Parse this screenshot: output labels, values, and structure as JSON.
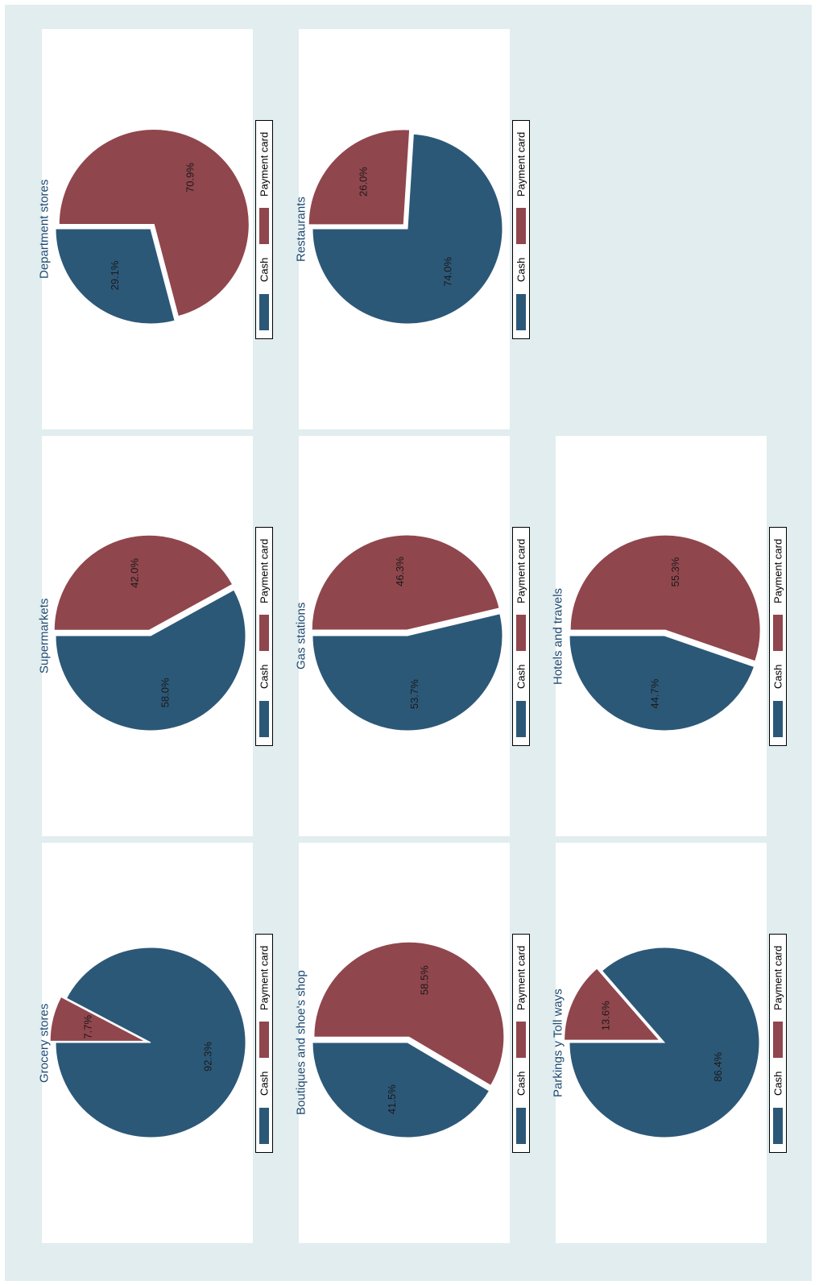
{
  "colors": {
    "background": "#e1edee",
    "cash": "#2c5878",
    "payment_card": "#90464d",
    "title": "#1a476f"
  },
  "legend": {
    "cash": "Cash",
    "payment_card": "Payment card"
  },
  "chart_data": [
    {
      "type": "pie",
      "title": "Grocery stores",
      "categories": [
        "Cash",
        "Payment card"
      ],
      "values": [
        92.3,
        7.7
      ],
      "labels": [
        "92.3%",
        "7.7%"
      ]
    },
    {
      "type": "pie",
      "title": "Supermarkets",
      "categories": [
        "Cash",
        "Payment card"
      ],
      "values": [
        58.0,
        42.0
      ],
      "labels": [
        "58.0%",
        "42.0%"
      ]
    },
    {
      "type": "pie",
      "title": "Department stores",
      "categories": [
        "Cash",
        "Payment card"
      ],
      "values": [
        29.1,
        70.9
      ],
      "labels": [
        "29.1%",
        "70.9%"
      ]
    },
    {
      "type": "pie",
      "title": "Boutiques and shoe's shop",
      "categories": [
        "Cash",
        "Payment card"
      ],
      "values": [
        41.5,
        58.5
      ],
      "labels": [
        "41.5%",
        "58.5%"
      ]
    },
    {
      "type": "pie",
      "title": "Gas stations",
      "categories": [
        "Cash",
        "Payment card"
      ],
      "values": [
        53.7,
        46.3
      ],
      "labels": [
        "53.7%",
        "46.3%"
      ]
    },
    {
      "type": "pie",
      "title": "Restaurants",
      "categories": [
        "Cash",
        "Payment card"
      ],
      "values": [
        74.0,
        26.0
      ],
      "labels": [
        "74.0%",
        "26.0%"
      ]
    },
    {
      "type": "pie",
      "title": "Parkings y Toll ways",
      "categories": [
        "Cash",
        "Payment card"
      ],
      "values": [
        86.4,
        13.6
      ],
      "labels": [
        "86.4%",
        "13.6%"
      ]
    },
    {
      "type": "pie",
      "title": "Hotels and travels",
      "categories": [
        "Cash",
        "Payment card"
      ],
      "values": [
        44.7,
        55.3
      ],
      "labels": [
        "44.7%",
        "55.3%"
      ]
    }
  ]
}
